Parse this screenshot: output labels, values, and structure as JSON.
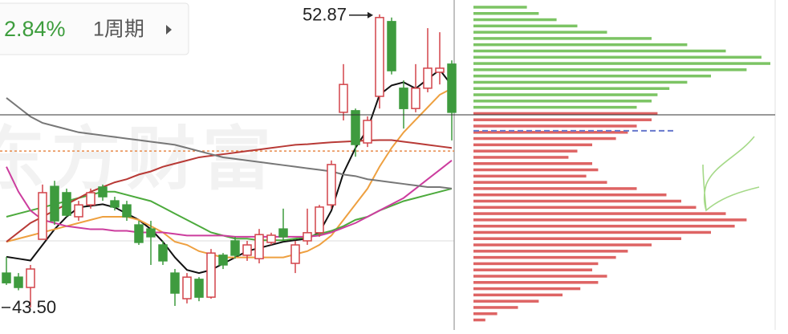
{
  "header": {
    "change": "2.84%",
    "period": "1周期"
  },
  "watermark": "东方财富",
  "chart_data": {
    "type": "candlestick",
    "ylim": [
      42.78,
      53.33
    ],
    "open": [
      44.6,
      44.47,
      44.14,
      45.68,
      47.37,
      47.17,
      46.4,
      46.78,
      47.35,
      46.91,
      46.78,
      46.14,
      46.01,
      45.5,
      44.6,
      43.78,
      44.4,
      43.83,
      45.17,
      45.63,
      45.17,
      45.06,
      45.58,
      46.01,
      44.91,
      45.63,
      45.89,
      46.78,
      49.74,
      49.79,
      48.76,
      50.25,
      52.64,
      50.51,
      49.86,
      50.51,
      51.02,
      51.28
    ],
    "high": [
      45.12,
      44.6,
      44.86,
      47.43,
      47.55,
      47.3,
      46.91,
      47.3,
      47.43,
      47.04,
      46.91,
      46.27,
      46.27,
      45.63,
      44.73,
      44.6,
      44.47,
      45.37,
      45.24,
      45.76,
      45.63,
      46.01,
      45.89,
      46.66,
      45.63,
      46.66,
      46.78,
      48.2,
      51.28,
      49.86,
      49.61,
      52.87,
      52.77,
      50.76,
      51.28,
      52.43,
      52.3,
      51.4
    ],
    "low": [
      44.22,
      44.05,
      43.5,
      45.68,
      46.14,
      46.4,
      46.27,
      46.66,
      46.91,
      46.6,
      46.27,
      45.5,
      44.86,
      44.86,
      43.55,
      43.63,
      43.7,
      43.78,
      44.73,
      45.06,
      44.99,
      44.91,
      45.5,
      45.63,
      44.6,
      45.5,
      45.76,
      46.66,
      49.48,
      48.32,
      48.63,
      49.86,
      50.95,
      49.22,
      49.74,
      50.38,
      50.63,
      48.84
    ],
    "close": [
      44.29,
      44.14,
      44.73,
      47.17,
      46.27,
      46.45,
      46.78,
      47.17,
      47.04,
      46.71,
      46.4,
      45.58,
      45.76,
      44.99,
      43.96,
      44.47,
      43.83,
      45.24,
      44.86,
      45.17,
      45.5,
      45.83,
      45.81,
      45.76,
      45.5,
      45.89,
      46.71,
      48.07,
      50.63,
      48.71,
      49.48,
      52.77,
      51.07,
      49.86,
      50.51,
      51.15,
      51.15,
      49.74
    ],
    "up_color": "#d2444a",
    "down_color": "#3e9b3e",
    "annotations": [
      "52.87",
      "43.50"
    ],
    "reference_lines": [
      {
        "value": 48.5,
        "color": "#e88a4a"
      }
    ],
    "series": [
      {
        "color": "#111111",
        "values": [
          45.12,
          45.06,
          45.0,
          45.5,
          46.0,
          46.4,
          46.7,
          46.75,
          46.8,
          46.7,
          46.5,
          46.3,
          46.0,
          45.6,
          45.1,
          44.7,
          44.6,
          44.7,
          44.9,
          45.1,
          45.3,
          45.4,
          45.5,
          45.6,
          45.65,
          45.7,
          45.9,
          46.6,
          47.8,
          48.6,
          49.2,
          50.3,
          50.6,
          50.7,
          50.5,
          50.8,
          51.1,
          50.6
        ]
      },
      {
        "color": "#eea040",
        "values": [
          45.6,
          45.7,
          45.8,
          45.9,
          46.0,
          46.1,
          46.2,
          46.3,
          46.4,
          46.4,
          46.4,
          46.3,
          46.1,
          45.9,
          45.6,
          45.5,
          45.3,
          45.2,
          45.1,
          45.1,
          45.1,
          45.1,
          45.1,
          45.1,
          45.2,
          45.3,
          45.5,
          45.8,
          46.3,
          46.8,
          47.3,
          48.0,
          48.6,
          49.1,
          49.5,
          49.9,
          50.3,
          50.5
        ]
      },
      {
        "color": "#4caa3c",
        "values": [
          46.4,
          46.5,
          46.6,
          46.7,
          46.8,
          46.9,
          47.0,
          47.1,
          47.2,
          47.2,
          47.1,
          47.0,
          46.9,
          46.7,
          46.5,
          46.3,
          46.1,
          45.9,
          45.8,
          45.7,
          45.7,
          45.65,
          45.65,
          45.65,
          45.7,
          45.75,
          45.85,
          45.95,
          46.1,
          46.3,
          46.4,
          46.6,
          46.75,
          46.9,
          47.0,
          47.1,
          47.2,
          47.3
        ]
      },
      {
        "color": "#cc3d9e",
        "values": [
          48.0,
          47.2,
          46.6,
          46.3,
          46.2,
          46.1,
          46.05,
          46.0,
          46.0,
          45.95,
          45.95,
          45.9,
          45.9,
          45.9,
          45.85,
          45.8,
          45.8,
          45.8,
          45.8,
          45.76,
          45.76,
          45.76,
          45.76,
          45.76,
          45.76,
          45.76,
          45.8,
          45.9,
          46.05,
          46.2,
          46.4,
          46.6,
          46.8,
          47.0,
          47.3,
          47.6,
          47.9,
          48.2
        ]
      },
      {
        "color": "#b83a36",
        "values": [
          45.6,
          45.9,
          46.2,
          46.4,
          46.6,
          46.8,
          47.0,
          47.2,
          47.35,
          47.5,
          47.6,
          47.75,
          47.85,
          48.0,
          48.1,
          48.2,
          48.3,
          48.35,
          48.4,
          48.45,
          48.5,
          48.55,
          48.6,
          48.65,
          48.7,
          48.72,
          48.75,
          48.78,
          48.8,
          48.82,
          48.84,
          48.85,
          48.85,
          48.8,
          48.75,
          48.7,
          48.65,
          48.6
        ]
      },
      {
        "color": "#777777",
        "values": [
          50.2,
          49.9,
          49.6,
          49.4,
          49.3,
          49.2,
          49.1,
          49.05,
          49.0,
          48.95,
          48.9,
          48.85,
          48.8,
          48.75,
          48.7,
          48.6,
          48.5,
          48.4,
          48.3,
          48.25,
          48.2,
          48.15,
          48.1,
          48.05,
          48.0,
          47.95,
          47.9,
          47.85,
          47.75,
          47.7,
          47.6,
          47.55,
          47.5,
          47.45,
          47.4,
          47.35,
          47.35,
          47.3
        ]
      }
    ],
    "profile": {
      "reference_lines": [
        {
          "value": 49.15,
          "color": "#6677cc"
        }
      ],
      "series": [
        {
          "color": "#7cc464",
          "price_levels": [
            53.1,
            52.9,
            52.7,
            52.5,
            52.3,
            52.1,
            51.9,
            51.7,
            51.5,
            51.3,
            51.1,
            50.9,
            50.7,
            50.5,
            50.3,
            50.1,
            49.9
          ],
          "values": [
            18,
            22,
            28,
            35,
            45,
            60,
            72,
            85,
            97,
            100,
            92,
            80,
            72,
            66,
            62,
            60,
            55
          ]
        },
        {
          "color": "#de6464",
          "price_levels": [
            49.7,
            49.5,
            49.3,
            49.1,
            48.9,
            48.7,
            48.5,
            48.3,
            48.1,
            47.9,
            47.7,
            47.5,
            47.3,
            47.1,
            46.9,
            46.7,
            46.5,
            46.3,
            46.1,
            45.9,
            45.7,
            45.5,
            45.3,
            45.1,
            44.9,
            44.7,
            44.5,
            44.3,
            44.1,
            43.9,
            43.7,
            43.5,
            43.3,
            43.1
          ],
          "values": [
            62,
            60,
            55,
            52,
            48,
            40,
            35,
            32,
            40,
            42,
            38,
            45,
            55,
            65,
            70,
            75,
            85,
            92,
            88,
            80,
            70,
            60,
            52,
            48,
            42,
            40,
            45,
            42,
            36,
            30,
            22,
            15,
            8,
            4
          ]
        }
      ]
    }
  }
}
